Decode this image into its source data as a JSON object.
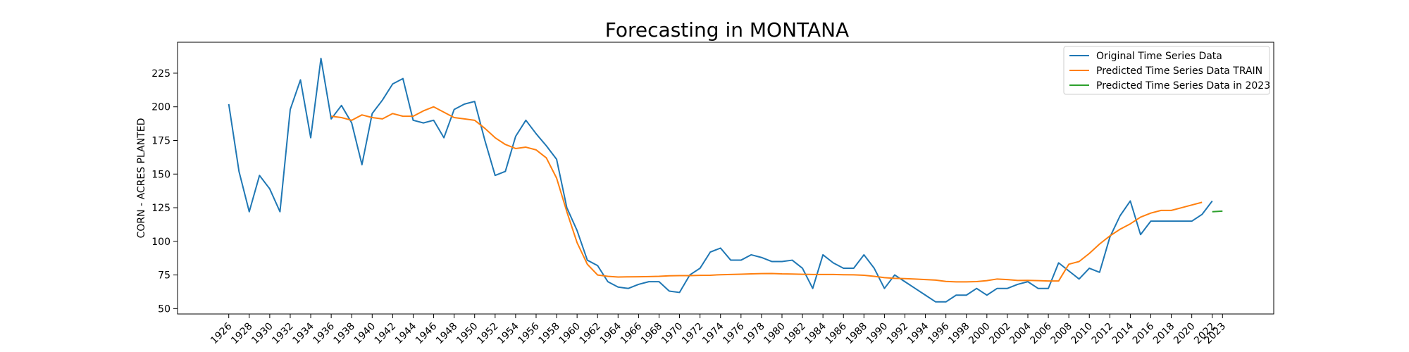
{
  "chart_data": {
    "type": "line",
    "title": "Forecasting in MONTANA",
    "xlabel": "",
    "ylabel": "CORN - ACRES PLANTED",
    "xlim": [
      1921,
      2028
    ],
    "ylim": [
      46,
      248
    ],
    "x_ticks": [
      1926,
      1928,
      1930,
      1932,
      1934,
      1936,
      1938,
      1940,
      1942,
      1944,
      1946,
      1948,
      1950,
      1952,
      1954,
      1956,
      1958,
      1960,
      1962,
      1964,
      1966,
      1968,
      1970,
      1972,
      1974,
      1976,
      1978,
      1980,
      1982,
      1984,
      1986,
      1988,
      1990,
      1992,
      1994,
      1996,
      1998,
      2000,
      2002,
      2004,
      2006,
      2008,
      2010,
      2012,
      2014,
      2016,
      2018,
      2020,
      2022,
      2023
    ],
    "y_ticks": [
      50,
      75,
      100,
      125,
      150,
      175,
      200,
      225
    ],
    "grid": false,
    "legend_position": "top-right",
    "series": [
      {
        "name": "Original Time Series Data",
        "color": "#1f77b4",
        "x": [
          1926,
          1927,
          1928,
          1929,
          1930,
          1931,
          1932,
          1933,
          1934,
          1935,
          1936,
          1937,
          1938,
          1939,
          1940,
          1941,
          1942,
          1943,
          1944,
          1945,
          1946,
          1947,
          1948,
          1949,
          1950,
          1951,
          1952,
          1953,
          1954,
          1955,
          1956,
          1957,
          1958,
          1959,
          1960,
          1961,
          1962,
          1963,
          1964,
          1965,
          1966,
          1967,
          1968,
          1969,
          1970,
          1971,
          1972,
          1973,
          1974,
          1975,
          1976,
          1977,
          1978,
          1979,
          1980,
          1981,
          1982,
          1983,
          1984,
          1985,
          1986,
          1987,
          1988,
          1989,
          1990,
          1991,
          1992,
          1993,
          1994,
          1995,
          1996,
          1997,
          1998,
          1999,
          2000,
          2001,
          2002,
          2003,
          2004,
          2005,
          2006,
          2007,
          2008,
          2009,
          2010,
          2011,
          2012,
          2013,
          2014,
          2015,
          2016,
          2017,
          2018,
          2019,
          2020,
          2021,
          2022
        ],
        "values": [
          202,
          152,
          122,
          149,
          139,
          122,
          198,
          220,
          177,
          236,
          191,
          201,
          188,
          157,
          195,
          205,
          217,
          221,
          190,
          188,
          190,
          177,
          198,
          202,
          204,
          175,
          149,
          152,
          178,
          190,
          180,
          171,
          161,
          125,
          108,
          86,
          82,
          70,
          66,
          65,
          68,
          70,
          70,
          63,
          62,
          75,
          80,
          92,
          95,
          86,
          86,
          90,
          88,
          85,
          85,
          86,
          80,
          65,
          90,
          84,
          80,
          80,
          90,
          80,
          65,
          75,
          70,
          65,
          60,
          55,
          55,
          60,
          60,
          65,
          60,
          65,
          65,
          68,
          70,
          65,
          65,
          84,
          78,
          72,
          80,
          77,
          103,
          119,
          130,
          105,
          115,
          115,
          115,
          115,
          115,
          120,
          130
        ]
      },
      {
        "name": "Predicted Time Series Data TRAIN",
        "color": "#ff7f0e",
        "x": [
          1936,
          1937,
          1938,
          1939,
          1940,
          1941,
          1942,
          1943,
          1944,
          1945,
          1946,
          1947,
          1948,
          1949,
          1950,
          1951,
          1952,
          1953,
          1954,
          1955,
          1956,
          1957,
          1958,
          1959,
          1960,
          1961,
          1962,
          1963,
          1964,
          1965,
          1966,
          1967,
          1968,
          1969,
          1970,
          1971,
          1972,
          1973,
          1974,
          1975,
          1976,
          1977,
          1978,
          1979,
          1980,
          1981,
          1982,
          1983,
          1984,
          1985,
          1986,
          1987,
          1988,
          1989,
          1990,
          1991,
          1992,
          1993,
          1994,
          1995,
          1996,
          1997,
          1998,
          1999,
          2000,
          2001,
          2002,
          2003,
          2004,
          2005,
          2006,
          2007,
          2008,
          2009,
          2010,
          2011,
          2012,
          2013,
          2014,
          2015,
          2016,
          2017,
          2018,
          2019,
          2020,
          2021
        ],
        "values": [
          193,
          192,
          190,
          194,
          192,
          191,
          195,
          193,
          193,
          197,
          200,
          196,
          192,
          191,
          190,
          184,
          177,
          172,
          169,
          170,
          168,
          162,
          147,
          122,
          99,
          83,
          75,
          74,
          73.5,
          73.6,
          73.7,
          73.8,
          74,
          74.4,
          74.5,
          74.5,
          74.7,
          74.8,
          75.2,
          75.4,
          75.6,
          75.8,
          76,
          76.1,
          75.8,
          75.7,
          75.5,
          75.4,
          75.4,
          75.4,
          75.2,
          75.1,
          74.8,
          74,
          73,
          72.5,
          72.3,
          72,
          71.6,
          71.2,
          70.2,
          69.9,
          69.9,
          70.1,
          70.8,
          72,
          71.6,
          70.9,
          71,
          70.8,
          70.5,
          70.5,
          83,
          85,
          91,
          98,
          104,
          109,
          113,
          118,
          121,
          123,
          123,
          125,
          127,
          129
        ]
      },
      {
        "name": "Predicted Time Series Data in 2023",
        "color": "#2ca02c",
        "x": [
          2022,
          2023
        ],
        "values": [
          122,
          122.5
        ]
      }
    ]
  }
}
